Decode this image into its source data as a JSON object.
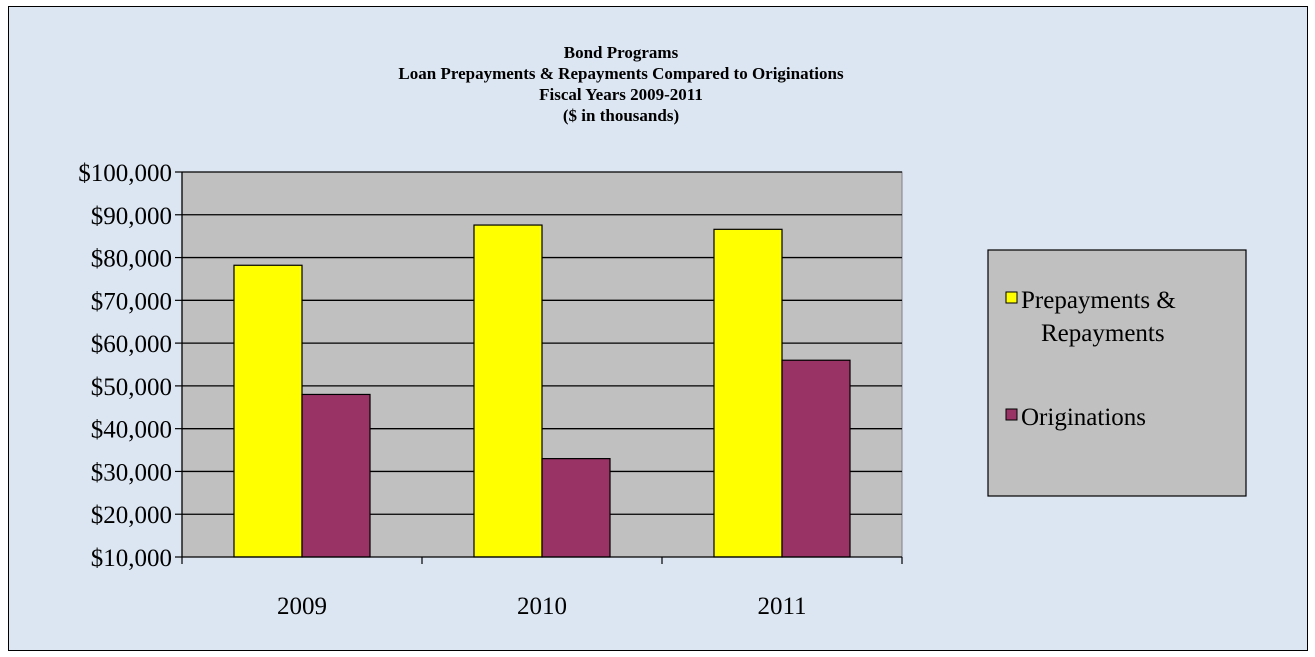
{
  "chart_data": {
    "type": "bar",
    "title_lines": [
      "Bond Programs",
      "Loan Prepayments & Repayments Compared to Originations",
      "Fiscal Years 2009-2011",
      "($ in thousands)"
    ],
    "categories": [
      "2009",
      "2010",
      "2011"
    ],
    "series": [
      {
        "name": "Prepayments & Repayments",
        "legend_lines": [
          "Prepayments &",
          "Repayments"
        ],
        "color": "#ffff00",
        "values": [
          78200,
          87600,
          86600
        ]
      },
      {
        "name": "Originations",
        "legend_lines": [
          "Originations"
        ],
        "color": "#993366",
        "values": [
          48000,
          33000,
          56000
        ]
      }
    ],
    "y_ticks": [
      10000,
      20000,
      30000,
      40000,
      50000,
      60000,
      70000,
      80000,
      90000,
      100000
    ],
    "y_tick_labels": [
      "$10,000",
      "$20,000",
      "$30,000",
      "$40,000",
      "$50,000",
      "$60,000",
      "$70,000",
      "$80,000",
      "$90,000",
      "$100,000"
    ],
    "ylim": [
      10000,
      100000
    ],
    "xlabel": "",
    "ylabel": "",
    "grid": true,
    "legend_position": "right",
    "plot_background": "#c0c0c0",
    "chart_background": "#dce6f2"
  }
}
